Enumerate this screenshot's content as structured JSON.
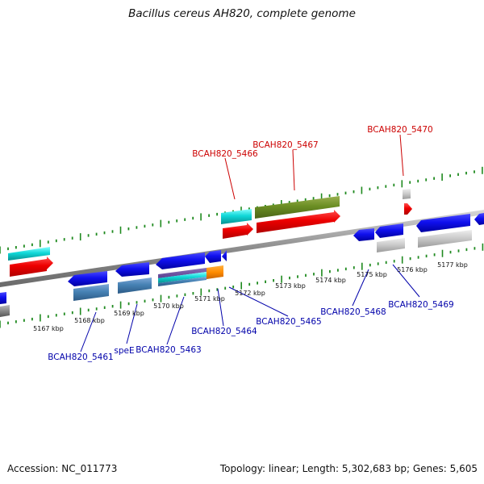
{
  "title": "Bacillus cereus AH820, complete genome",
  "footer": {
    "accession": "Accession: NC_011773",
    "summary": "Topology: linear; Length: 5,302,683 bp; Genes: 5,605"
  },
  "colors": {
    "forward_label": "#cc0000",
    "reverse_label": "#0000aa",
    "tick": "#1f8a1f",
    "backbone": "#8c8c8c"
  },
  "scale_labels": [
    "5167 kbp",
    "5168 kbp",
    "5169 kbp",
    "5170 kbp",
    "5171 kbp",
    "5172 kbp",
    "5173 kbp",
    "5174 kbp",
    "5175 kbp",
    "5176 kbp",
    "5177 kbp"
  ],
  "gene_labels": {
    "forward": [
      "BCAH820_5466",
      "BCAH820_5467",
      "BCAH820_5470"
    ],
    "reverse": [
      "BCAH820_5461",
      "speE",
      "BCAH820_5463",
      "BCAH820_5464",
      "BCAH820_5465",
      "BCAH820_5468",
      "BCAH820_5469"
    ]
  }
}
